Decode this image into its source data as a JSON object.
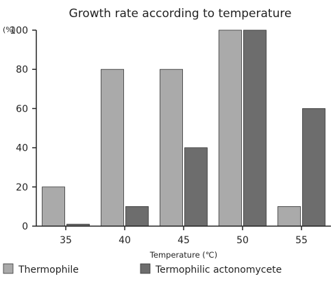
{
  "chart_data": {
    "type": "bar",
    "title": "Growth rate according to temperature",
    "y_unit_label": "(%)",
    "xlabel": "Temperature (℃)",
    "ylabel": "",
    "categories": [
      "35",
      "40",
      "45",
      "50",
      "55"
    ],
    "ylim": [
      0,
      100
    ],
    "yticks": [
      0,
      20,
      40,
      60,
      80,
      100
    ],
    "grid": false,
    "legend_position": "bottom",
    "series": [
      {
        "name": "Thermophile",
        "values": [
          20,
          80,
          80,
          100,
          10
        ],
        "color": "#aaaaaa"
      },
      {
        "name": "Termophilic actonomycete",
        "values": [
          1,
          10,
          40,
          100,
          60
        ],
        "color": "#6d6d6d"
      }
    ]
  }
}
